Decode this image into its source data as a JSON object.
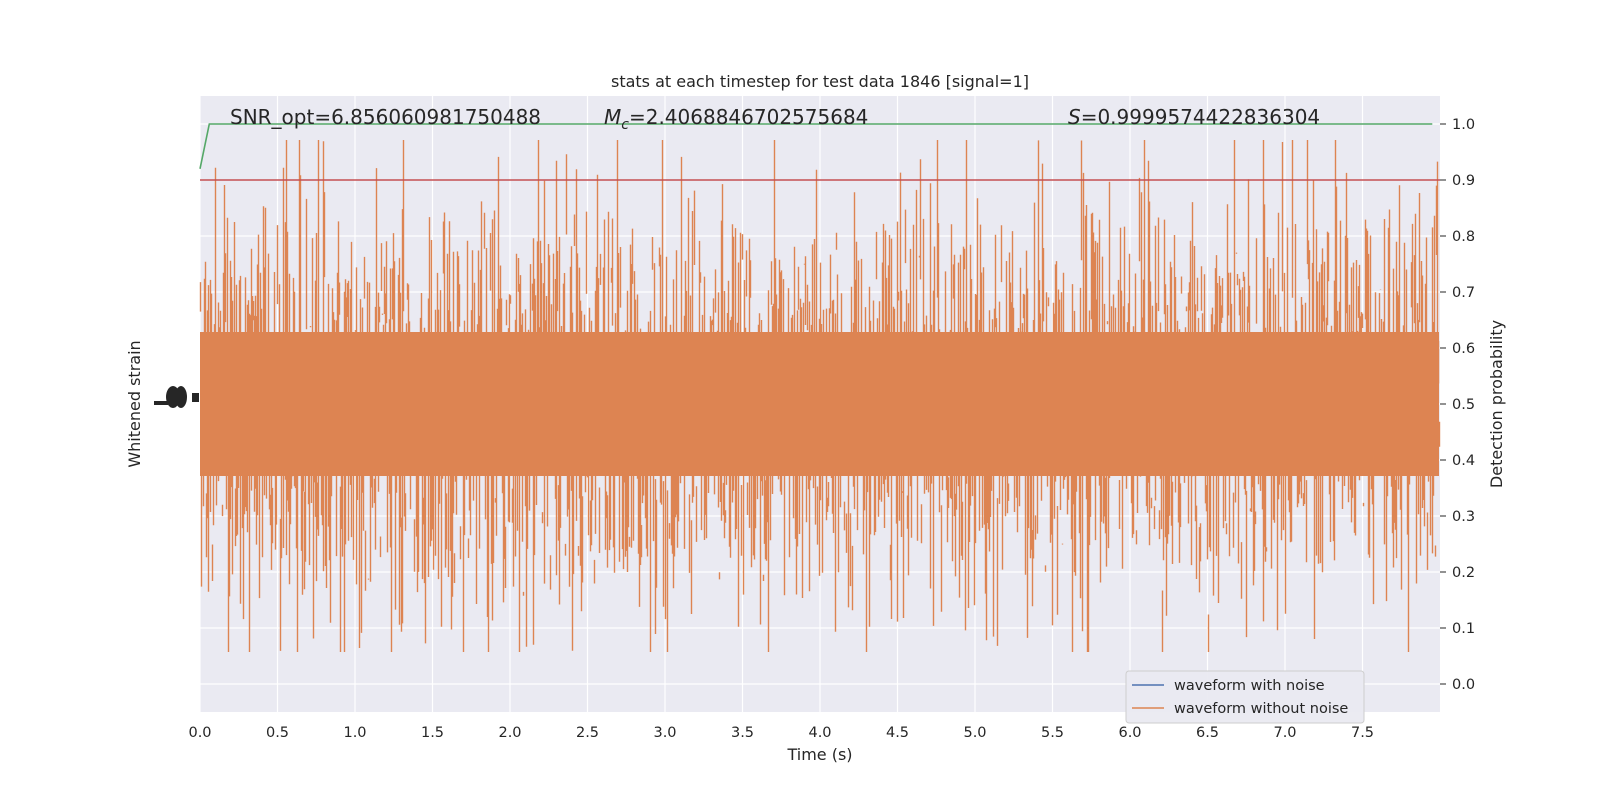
{
  "chart_data": {
    "type": "line",
    "title": "stats at each timestep for test data 1846 [signal=1]",
    "xlabel": "Time (s)",
    "ylabel_left": "Whitened strain",
    "ylabel_right": "Detection probability",
    "xlim": [
      0.0,
      8.0
    ],
    "ylim_right": [
      -0.05,
      1.05
    ],
    "x_ticks": [
      "0.0",
      "0.5",
      "1.0",
      "1.5",
      "2.0",
      "2.5",
      "3.0",
      "3.5",
      "4.0",
      "4.5",
      "5.0",
      "5.5",
      "6.0",
      "6.5",
      "7.0",
      "7.5"
    ],
    "y_ticks_right": [
      "0.0",
      "0.1",
      "0.2",
      "0.3",
      "0.4",
      "0.5",
      "0.6",
      "0.7",
      "0.8",
      "0.9",
      "1.0"
    ],
    "grid": true,
    "legend_position": "lower-right",
    "annotations": {
      "snr": "SNR_opt=6.856060981750488",
      "mc_symbol": "M",
      "mc_sub": "c",
      "mc_value": "=2.4068846702575684",
      "s_symbol": "S",
      "s_value": "=0.9999574422836304"
    },
    "series": [
      {
        "name": "waveform with noise",
        "color": "#4c72b0"
      },
      {
        "name": "waveform without noise",
        "color": "#dd8452"
      }
    ],
    "detection_probability": {
      "color": "#55a868",
      "x": [
        0.0,
        0.06,
        7.95
      ],
      "y": [
        0.92,
        1.0,
        1.0
      ]
    },
    "threshold": {
      "value": 0.9,
      "color": "#c44e52"
    }
  }
}
